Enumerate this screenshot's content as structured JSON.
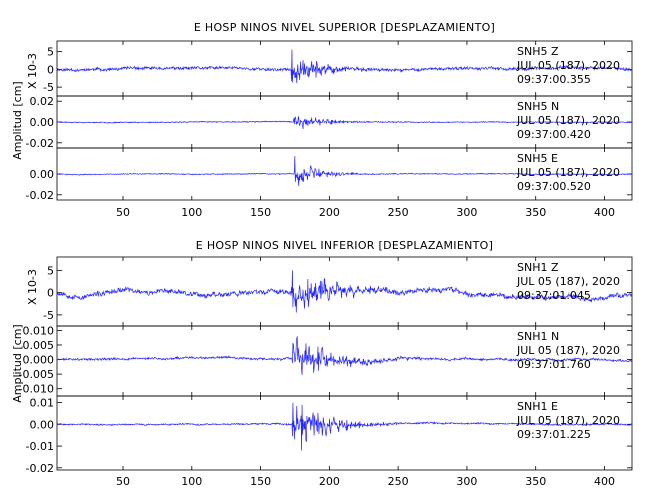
{
  "chart_data": [
    {
      "type": "line",
      "title": "E HOSP NINOS NIVEL SUPERIOR [DESPLAZAMIENTO]",
      "ylabel": "Amplitud [cm]",
      "xlim": [
        2,
        420
      ],
      "xticks": [
        50,
        100,
        150,
        200,
        250,
        300,
        350,
        400
      ],
      "series": [
        {
          "station": "SNH5",
          "component": "Z",
          "date": "JUL 05 (187), 2020",
          "time": "09:37:00.355",
          "scale": "X 10-3",
          "ylim": [
            -7.5,
            8
          ],
          "yticks": [
            5,
            0,
            -5
          ],
          "arrival": 172,
          "peak": 7.2,
          "noise": 0.35,
          "wander": 0.4,
          "decay": 20,
          "seed": 11,
          "color": "#2626ff"
        },
        {
          "station": "SNH5",
          "component": "N",
          "date": "JUL 05 (187), 2020",
          "time": "09:37:00.420",
          "scale": "",
          "ylim": [
            -0.025,
            0.025
          ],
          "yticks": [
            0.02,
            0.0,
            -0.02
          ],
          "arrival": 174,
          "peak": 0.012,
          "noise": 0.0004,
          "wander": 0.0004,
          "decay": 18,
          "seed": 23,
          "color": "#2626ff"
        },
        {
          "station": "SNH5",
          "component": "E",
          "date": "JUL 05 (187), 2020",
          "time": "09:37:00.520",
          "scale": "",
          "ylim": [
            -0.025,
            0.025
          ],
          "yticks": [
            0.0,
            -0.02
          ],
          "arrival": 174,
          "peak": 0.021,
          "noise": 0.0004,
          "wander": 0.0004,
          "decay": 15,
          "seed": 37,
          "color": "#2626ff"
        }
      ]
    },
    {
      "type": "line",
      "title": "E HOSP NINOS NIVEL INFERIOR [DESPLAZAMIENTO]",
      "ylabel": "Amplitud [cm]",
      "xlim": [
        2,
        420
      ],
      "xticks": [
        50,
        100,
        150,
        200,
        250,
        300,
        350,
        400
      ],
      "series": [
        {
          "station": "SNH1",
          "component": "Z",
          "date": "JUL 05 (187), 2020",
          "time": "09:37:01.045",
          "scale": "X 10-3",
          "ylim": [
            -7.5,
            8
          ],
          "yticks": [
            5,
            0,
            -5
          ],
          "arrival": 172,
          "peak": 7.0,
          "noise": 0.45,
          "wander": 0.9,
          "decay": 30,
          "seed": 53,
          "color": "#2626ff"
        },
        {
          "station": "SNH1",
          "component": "N",
          "date": "JUL 05 (187), 2020",
          "time": "09:37:01.760",
          "scale": "",
          "ylim": [
            -0.0125,
            0.0115
          ],
          "yticks": [
            0.01,
            0.005,
            0.0,
            -0.005,
            -0.01
          ],
          "arrival": 173,
          "peak": 0.0095,
          "noise": 0.0003,
          "wander": 0.0006,
          "decay": 28,
          "seed": 71,
          "color": "#2626ff"
        },
        {
          "station": "SNH1",
          "component": "E",
          "date": "JUL 05 (187), 2020",
          "time": "09:37:01.225",
          "scale": "",
          "ylim": [
            -0.021,
            0.013
          ],
          "yticks": [
            0.01,
            0.0,
            -0.01,
            -0.02
          ],
          "arrival": 173,
          "peak": 0.017,
          "noise": 0.0003,
          "wander": 0.0005,
          "decay": 22,
          "seed": 89,
          "color": "#2626ff"
        }
      ]
    }
  ]
}
